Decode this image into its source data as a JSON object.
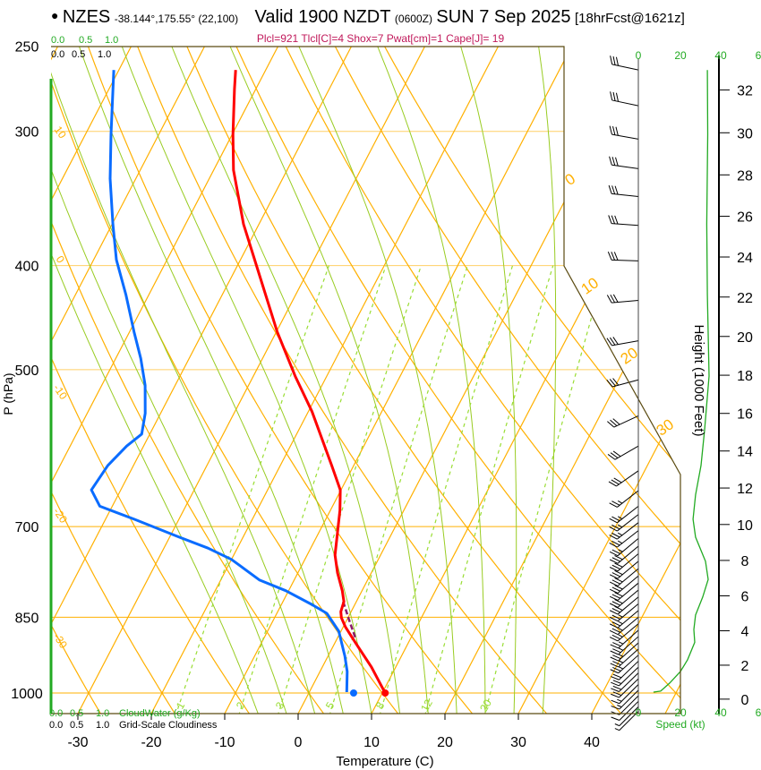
{
  "header": {
    "bullet": "●",
    "station": "NZES",
    "coords": "-38.144°,175.55° (22,100)",
    "valid": "Valid 1900 NZDT",
    "utc": "(0600Z)",
    "date": "SUN 7 Sep 2025",
    "forecast": "[18hrFcst@1621z]",
    "indices": "Plcl=921 Tlcl[C]=4 Shox=7 Pwat[cm]=1 Cape[J]= 19"
  },
  "colors": {
    "temperature": "#ff0000",
    "dewpoint": "#0a6cff",
    "parcel": "#8b1a6b",
    "isotherm": "#ffb000",
    "moist_adiabat": "#99cc22",
    "mixing_ratio": "#99dd33",
    "speed": "#22aa22",
    "cloud": "#22aa22",
    "indices": "#c0185a"
  },
  "chart_data": {
    "type": "skew-t",
    "xlabel": "Temperature (C)",
    "ylabel": "P (hPa)",
    "right_label": "Height (1000 Feet)",
    "speed_label": "Speed (kt)",
    "pressure_range": [
      250,
      1045
    ],
    "pressure_ticks": [
      "250",
      "300",
      "400",
      "500",
      "700",
      "850",
      "1000"
    ],
    "temperature_ticks": [
      "-30",
      "-20",
      "-10",
      "0",
      "10",
      "20",
      "30",
      "40"
    ],
    "height_ticks_kft": [
      "0",
      "2",
      "4",
      "6",
      "8",
      "10",
      "12",
      "14",
      "16",
      "18",
      "20",
      "22",
      "24",
      "26",
      "28",
      "30",
      "32"
    ],
    "speed_ticks": [
      "0",
      "20",
      "40",
      "6"
    ],
    "cloud_scale_top_green": [
      "0.0",
      "0.5",
      "1.0"
    ],
    "cloud_scale_top_black": [
      "0.0",
      "0.5",
      "1.0"
    ],
    "cloud_scale_bottom_green": [
      "0.0",
      "0.5",
      "1.0"
    ],
    "cloud_scale_bottom_black": [
      "0.0",
      "0.5",
      "1.0"
    ],
    "cloudwater_label": "CloudWater (g/Kg)",
    "cloudiness_label": "Grid-Scale Cloudiness",
    "isotherm_labels": [
      "0",
      "10",
      "20",
      "30"
    ],
    "left_edge_labels": [
      "10",
      "0",
      "-10",
      "-20",
      "-30"
    ],
    "mixing_ratio_labels": [
      "1",
      "2",
      "3",
      "5",
      "8",
      "12",
      "20"
    ],
    "mixing_ratios_gkg": [
      1,
      2,
      3,
      5,
      8,
      12,
      20
    ],
    "dry_adiabats_T1000": [
      -70,
      -60,
      -50,
      -40,
      -30,
      -20,
      -10,
      0,
      10,
      20,
      30,
      40,
      50,
      60,
      70,
      80
    ],
    "moist_adiabats_T1000": [
      -8,
      -4,
      0,
      4,
      8,
      12,
      16,
      20,
      24,
      28,
      32
    ],
    "isotherms": [
      -110,
      -100,
      -90,
      -80,
      -70,
      -60,
      -50,
      -40,
      -30,
      -20,
      -10,
      0,
      10,
      20,
      30,
      40,
      50
    ],
    "isobars": [
      300,
      400,
      500,
      700,
      850,
      1000
    ],
    "series": [
      {
        "name": "temperature",
        "p": [
          263,
          274,
          302,
          326,
          366,
          410,
          461,
          507,
          547,
          614,
          647,
          676,
          716,
          744,
          773,
          803,
          822,
          840,
          851,
          868,
          898,
          946,
          1000
        ],
        "T": [
          -54.1,
          -52.9,
          -49.9,
          -47.3,
          -42.1,
          -36.1,
          -29.9,
          -24.3,
          -19.5,
          -13.0,
          -10.1,
          -8.7,
          -7.2,
          -6.2,
          -4.6,
          -2.7,
          -1.7,
          -1.4,
          -0.9,
          0.3,
          2.8,
          6.7,
          10.4
        ]
      },
      {
        "name": "dewpoint",
        "p": [
          263,
          302,
          332,
          366,
          395,
          426,
          461,
          488,
          517,
          549,
          574,
          589,
          614,
          647,
          670,
          689,
          716,
          733,
          751,
          763,
          785,
          803,
          827,
          843,
          876,
          924,
          955,
          998
        ],
        "T": [
          -70.7,
          -66.5,
          -63.5,
          -59.9,
          -56.9,
          -53.1,
          -49.4,
          -46.6,
          -44.1,
          -42.1,
          -41.1,
          -42.3,
          -43.5,
          -44.0,
          -41.7,
          -36.1,
          -28.7,
          -24.0,
          -20.0,
          -18.1,
          -14.7,
          -10.4,
          -5.9,
          -3.2,
          -0.3,
          2.3,
          3.7,
          5.1
        ]
      },
      {
        "name": "parcel",
        "p": [
          822,
          855,
          888
        ],
        "T": [
          -1.8,
          0.3,
          2.4
        ]
      }
    ],
    "surface": {
      "temperature": 10.4,
      "dewpoint": 6.1,
      "p": 1000
    },
    "wind_speed_profile": {
      "p": [
        263,
        302,
        366,
        426,
        507,
        569,
        614,
        654,
        689,
        716,
        754,
        784,
        814,
        846,
        873,
        897,
        931,
        955,
        979,
        996,
        998
      ],
      "kt": [
        32.8,
        33,
        32.5,
        32.8,
        33.6,
        31.5,
        29.8,
        27.2,
        26,
        27.2,
        31.9,
        33.2,
        30.6,
        27.2,
        26.4,
        26.8,
        23.4,
        20,
        14.9,
        10.6,
        7.2
      ]
    },
    "wind_barbs": {
      "p": [
        263,
        284,
        305,
        325,
        345,
        367,
        396,
        431,
        470,
        511,
        552,
        589,
        621,
        648,
        670,
        682,
        694,
        706,
        718,
        730,
        742,
        754,
        766,
        778,
        790,
        802,
        814,
        826,
        838,
        850,
        862,
        874,
        886,
        898,
        910,
        922,
        934,
        946,
        958,
        970,
        982,
        994,
        1006,
        1018,
        1030,
        1040
      ],
      "dir": [
        282,
        282,
        280,
        278,
        276,
        274,
        272,
        265,
        260,
        255,
        245,
        240,
        235,
        232,
        232,
        232,
        232,
        232,
        230,
        230,
        230,
        230,
        230,
        230,
        230,
        230,
        230,
        230,
        230,
        230,
        230,
        228,
        228,
        228,
        228,
        228,
        226,
        226,
        226,
        226,
        225,
        225,
        225,
        225,
        225,
        225
      ],
      "kt": [
        30,
        30,
        30,
        30,
        30,
        30,
        30,
        30,
        30,
        30,
        30,
        30,
        30,
        25,
        25,
        25,
        25,
        25,
        25,
        30,
        30,
        30,
        30,
        30,
        30,
        30,
        30,
        25,
        25,
        25,
        25,
        25,
        25,
        25,
        25,
        25,
        20,
        20,
        20,
        20,
        15,
        15,
        10,
        10,
        5,
        5
      ]
    }
  }
}
